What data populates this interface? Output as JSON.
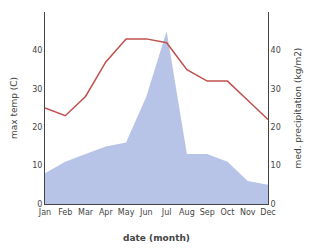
{
  "chart_data": {
    "type": "line",
    "categories": [
      "Jan",
      "Feb",
      "Mar",
      "Apr",
      "May",
      "Jun",
      "Jul",
      "Aug",
      "Sep",
      "Oct",
      "Nov",
      "Dec"
    ],
    "series": [
      {
        "type": "line",
        "color": "#c0504d",
        "values": [
          25,
          23,
          28,
          37,
          43,
          43,
          42,
          35,
          32,
          32,
          27,
          22
        ]
      },
      {
        "type": "area",
        "axis": "y2",
        "color": "#b8c3e8",
        "values": [
          8,
          11,
          13,
          15,
          16,
          28,
          45,
          13,
          13,
          11,
          6,
          5
        ]
      }
    ],
    "xlabel": "date (month)",
    "ylabel": "max temp (C)",
    "y2label": "med. precipitation (kg/m2)",
    "ylim": [
      0,
      50
    ],
    "yticks": [
      0,
      10,
      20,
      30,
      40
    ],
    "y2lim": [
      0,
      50
    ],
    "y2ticks": [
      0,
      10,
      20,
      30,
      40
    ],
    "grid": false
  }
}
